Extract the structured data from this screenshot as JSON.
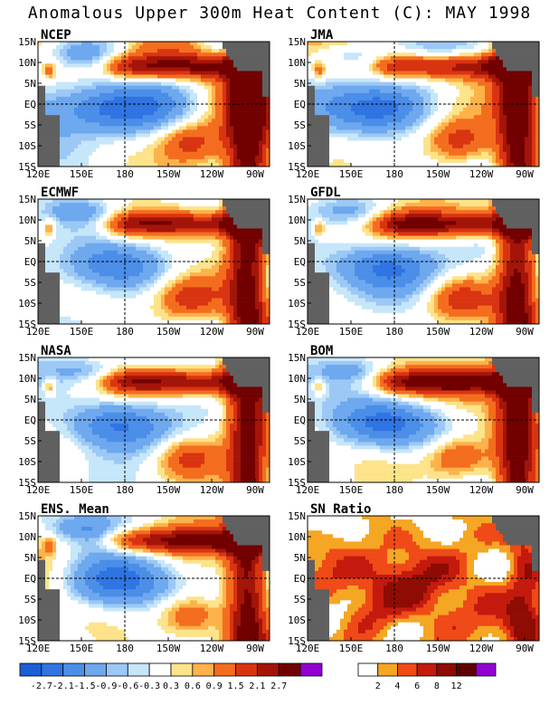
{
  "title": "Anomalous Upper 300m Heat Content (C): MAY 1998",
  "chart_data": [
    {
      "type": "heatmap",
      "title": "NCEP",
      "kind": "anomaly",
      "seed": 1
    },
    {
      "type": "heatmap",
      "title": "JMA",
      "kind": "anomaly",
      "seed": 2
    },
    {
      "type": "heatmap",
      "title": "ECMWF",
      "kind": "anomaly",
      "seed": 3
    },
    {
      "type": "heatmap",
      "title": "GFDL",
      "kind": "anomaly",
      "seed": 4
    },
    {
      "type": "heatmap",
      "title": "NASA",
      "kind": "anomaly",
      "seed": 5
    },
    {
      "type": "heatmap",
      "title": "BOM",
      "kind": "anomaly",
      "seed": 6
    },
    {
      "type": "heatmap",
      "title": "ENS. Mean",
      "kind": "anomaly",
      "seed": 7
    },
    {
      "type": "heatmap",
      "title": "SN Ratio",
      "kind": "ratio",
      "seed": 8
    }
  ],
  "axes": {
    "x_ticks": [
      "120E",
      "150E",
      "180",
      "150W",
      "120W",
      "90W"
    ],
    "y_ticks": [
      "15N",
      "10N",
      "5N",
      "EQ",
      "5S",
      "10S",
      "15S"
    ]
  },
  "colorbars": {
    "anomaly": {
      "labels": [
        "-2.7",
        "-2.1",
        "-1.5",
        "-0.9",
        "-0.6",
        "-0.3",
        "0.3",
        "0.6",
        "0.9",
        "1.5",
        "2.1",
        "2.7"
      ],
      "colors": [
        "#1c5ed8",
        "#2f74e2",
        "#4b8ee8",
        "#6ea8ee",
        "#9cc8f5",
        "#c6e6fa",
        "#ffffff",
        "#fde38a",
        "#fdb24a",
        "#f46d1e",
        "#d93412",
        "#a41509",
        "#720000",
        "#9400d3"
      ]
    },
    "ratio": {
      "labels": [
        "2",
        "4",
        "6",
        "8",
        "12"
      ],
      "colors": [
        "#ffffff",
        "#f5a623",
        "#ef4a17",
        "#c41a0e",
        "#8e0c04",
        "#5f0000",
        "#9400d3"
      ]
    }
  }
}
